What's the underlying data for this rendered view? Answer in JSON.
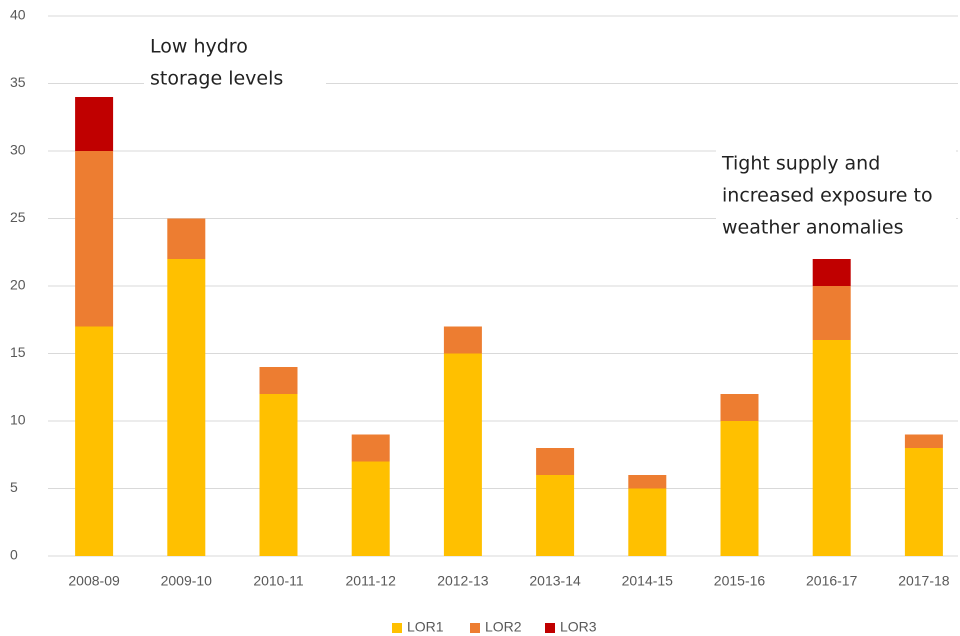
{
  "chart_data": {
    "type": "stacked-bar",
    "categories": [
      "2008-09",
      "2009-10",
      "2010-11",
      "2011-12",
      "2012-13",
      "2013-14",
      "2014-15",
      "2015-16",
      "2016-17",
      "2017-18"
    ],
    "series": [
      {
        "name": "LOR1",
        "color": "#ffc000",
        "values": [
          17,
          22,
          12,
          7,
          15,
          6,
          5,
          10,
          16,
          8
        ]
      },
      {
        "name": "LOR2",
        "color": "#ed7d31",
        "values": [
          13,
          3,
          2,
          2,
          2,
          2,
          1,
          2,
          4,
          1
        ]
      },
      {
        "name": "LOR3",
        "color": "#c00000",
        "values": [
          4,
          0,
          0,
          0,
          0,
          0,
          0,
          0,
          2,
          0
        ]
      }
    ],
    "ylim": [
      0,
      40
    ],
    "yticks": [
      0,
      5,
      10,
      15,
      20,
      25,
      30,
      35,
      40
    ],
    "grid": true,
    "legend": "bottom",
    "annotations": [
      {
        "lines": [
          "Low hydro",
          "storage levels"
        ]
      },
      {
        "lines": [
          "Tight supply and",
          "increased exposure to",
          "weather anomalies"
        ]
      }
    ]
  }
}
